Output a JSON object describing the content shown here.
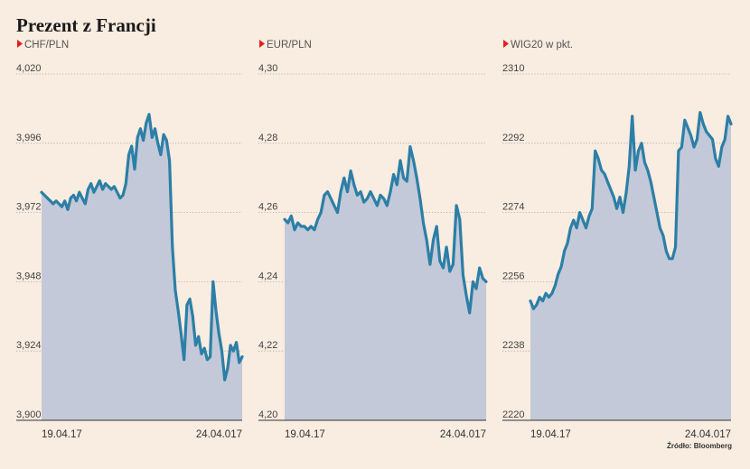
{
  "title": "Prezent z Francji",
  "source": "Źródło: Bloomberg",
  "colors": {
    "line": "#2c7fa6",
    "area": "#c3c9d8",
    "marker": "#e02020",
    "grid": "#a8a8a8"
  },
  "chart_data": [
    {
      "type": "area",
      "label": "CHF/PLN",
      "ylim": [
        3.9,
        4.02
      ],
      "yticks": [
        "4,020",
        "3,996",
        "3,972",
        "3,948",
        "3,924",
        "3,900"
      ],
      "xticks": [
        "19.04.17",
        "24.04.017"
      ],
      "y": [
        3.979,
        3.978,
        3.977,
        3.976,
        3.975,
        3.976,
        3.975,
        3.974,
        3.976,
        3.973,
        3.977,
        3.978,
        3.976,
        3.979,
        3.977,
        3.975,
        3.98,
        3.982,
        3.979,
        3.981,
        3.983,
        3.98,
        3.982,
        3.981,
        3.98,
        3.981,
        3.979,
        3.977,
        3.978,
        3.982,
        3.992,
        3.995,
        3.987,
        3.998,
        4.001,
        3.997,
        4.003,
        4.006,
        3.998,
        4.001,
        3.996,
        3.992,
        3.999,
        3.997,
        3.99,
        3.96,
        3.945,
        3.938,
        3.93,
        3.921,
        3.94,
        3.942,
        3.936,
        3.926,
        3.929,
        3.923,
        3.925,
        3.921,
        3.922,
        3.948,
        3.938,
        3.93,
        3.924,
        3.914,
        3.918,
        3.926,
        3.924,
        3.927,
        3.92,
        3.922
      ]
    },
    {
      "type": "area",
      "label": "EUR/PLN",
      "ylim": [
        4.2,
        4.3
      ],
      "yticks": [
        "4,30",
        "4,28",
        "4,26",
        "4,24",
        "4,22",
        "4,20"
      ],
      "xticks": [
        "19.04.17",
        "24.04.017"
      ],
      "y": [
        4.258,
        4.257,
        4.259,
        4.255,
        4.257,
        4.256,
        4.256,
        4.255,
        4.256,
        4.255,
        4.258,
        4.26,
        4.265,
        4.266,
        4.264,
        4.262,
        4.26,
        4.266,
        4.27,
        4.266,
        4.272,
        4.268,
        4.265,
        4.266,
        4.263,
        4.264,
        4.266,
        4.264,
        4.262,
        4.265,
        4.264,
        4.262,
        4.266,
        4.271,
        4.268,
        4.275,
        4.27,
        4.269,
        4.279,
        4.275,
        4.27,
        4.264,
        4.257,
        4.252,
        4.245,
        4.252,
        4.256,
        4.246,
        4.244,
        4.25,
        4.243,
        4.245,
        4.262,
        4.258,
        4.242,
        4.236,
        4.231,
        4.24,
        4.238,
        4.244,
        4.241,
        4.24
      ]
    },
    {
      "type": "area",
      "label": "WIG20 w pkt.",
      "ylim": [
        2220,
        2310
      ],
      "yticks": [
        "2310",
        "2292",
        "2274",
        "2256",
        "2238",
        "2220"
      ],
      "xticks": [
        "19.04.17",
        "24.04.017"
      ],
      "y": [
        2251,
        2249,
        2250,
        2252,
        2251,
        2253,
        2252,
        2253,
        2255,
        2258,
        2260,
        2264,
        2266,
        2270,
        2272,
        2270,
        2274,
        2272,
        2270,
        2273,
        2275,
        2290,
        2288,
        2285,
        2284,
        2282,
        2280,
        2278,
        2275,
        2278,
        2274,
        2279,
        2286,
        2299,
        2285,
        2290,
        2292,
        2287,
        2285,
        2282,
        2278,
        2274,
        2270,
        2268,
        2264,
        2262,
        2262,
        2265,
        2290,
        2291,
        2298,
        2296,
        2294,
        2291,
        2293,
        2300,
        2297,
        2295,
        2294,
        2293,
        2288,
        2286,
        2291,
        2293,
        2299,
        2297
      ]
    }
  ]
}
